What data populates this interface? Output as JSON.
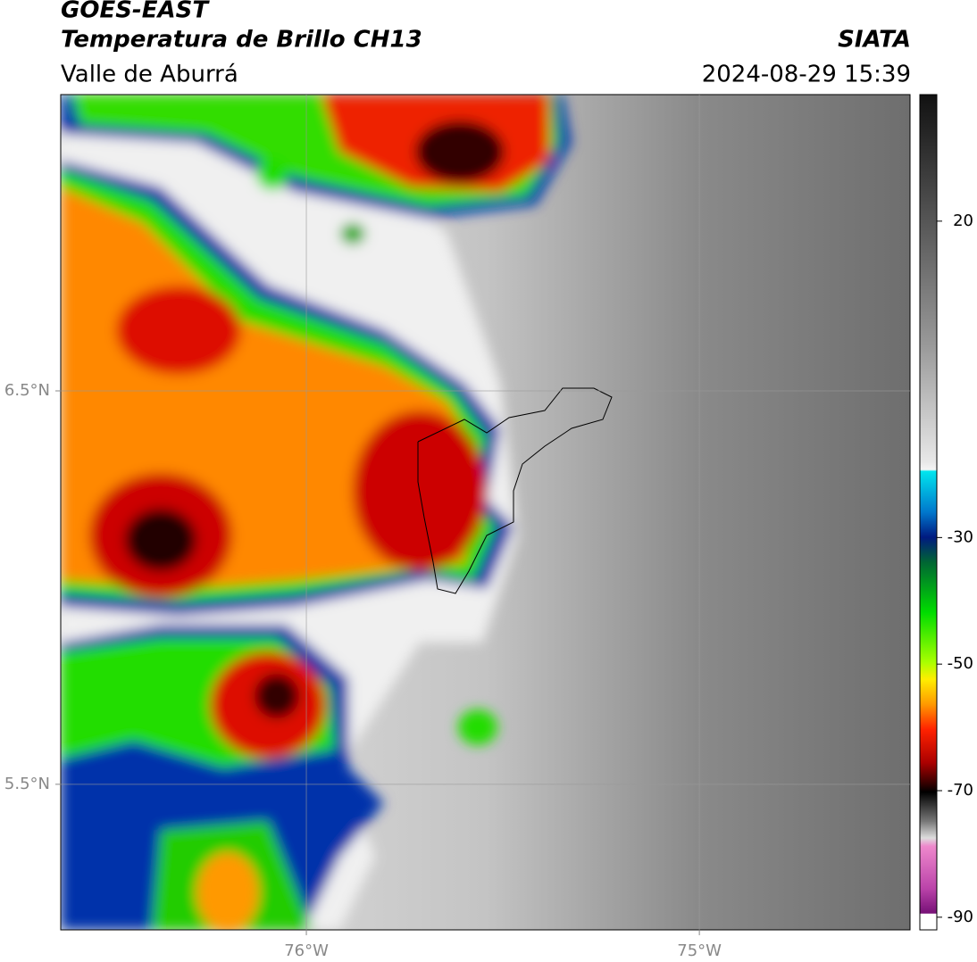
{
  "header": {
    "satellite": "GOES-EAST",
    "title": "Temperatura de Brillo CH13",
    "region": "Valle de Aburrá",
    "source": "SIATA",
    "datetime": "2024-08-29 15:39"
  },
  "map": {
    "xlim": [
      -76.625,
      -74.464
    ],
    "ylim": [
      5.13,
      7.253
    ],
    "xticks": [
      {
        "value": -76,
        "label": "76°W"
      },
      {
        "value": -75,
        "label": "75°W"
      }
    ],
    "yticks": [
      {
        "value": 5.5,
        "label": "5.5°N"
      },
      {
        "value": 6.5,
        "label": "6.5°N"
      }
    ],
    "grid": true
  },
  "colorbar": {
    "lim": [
      -92,
      40
    ],
    "ticks": [
      20,
      -30,
      -50,
      -70,
      -90
    ]
  }
}
